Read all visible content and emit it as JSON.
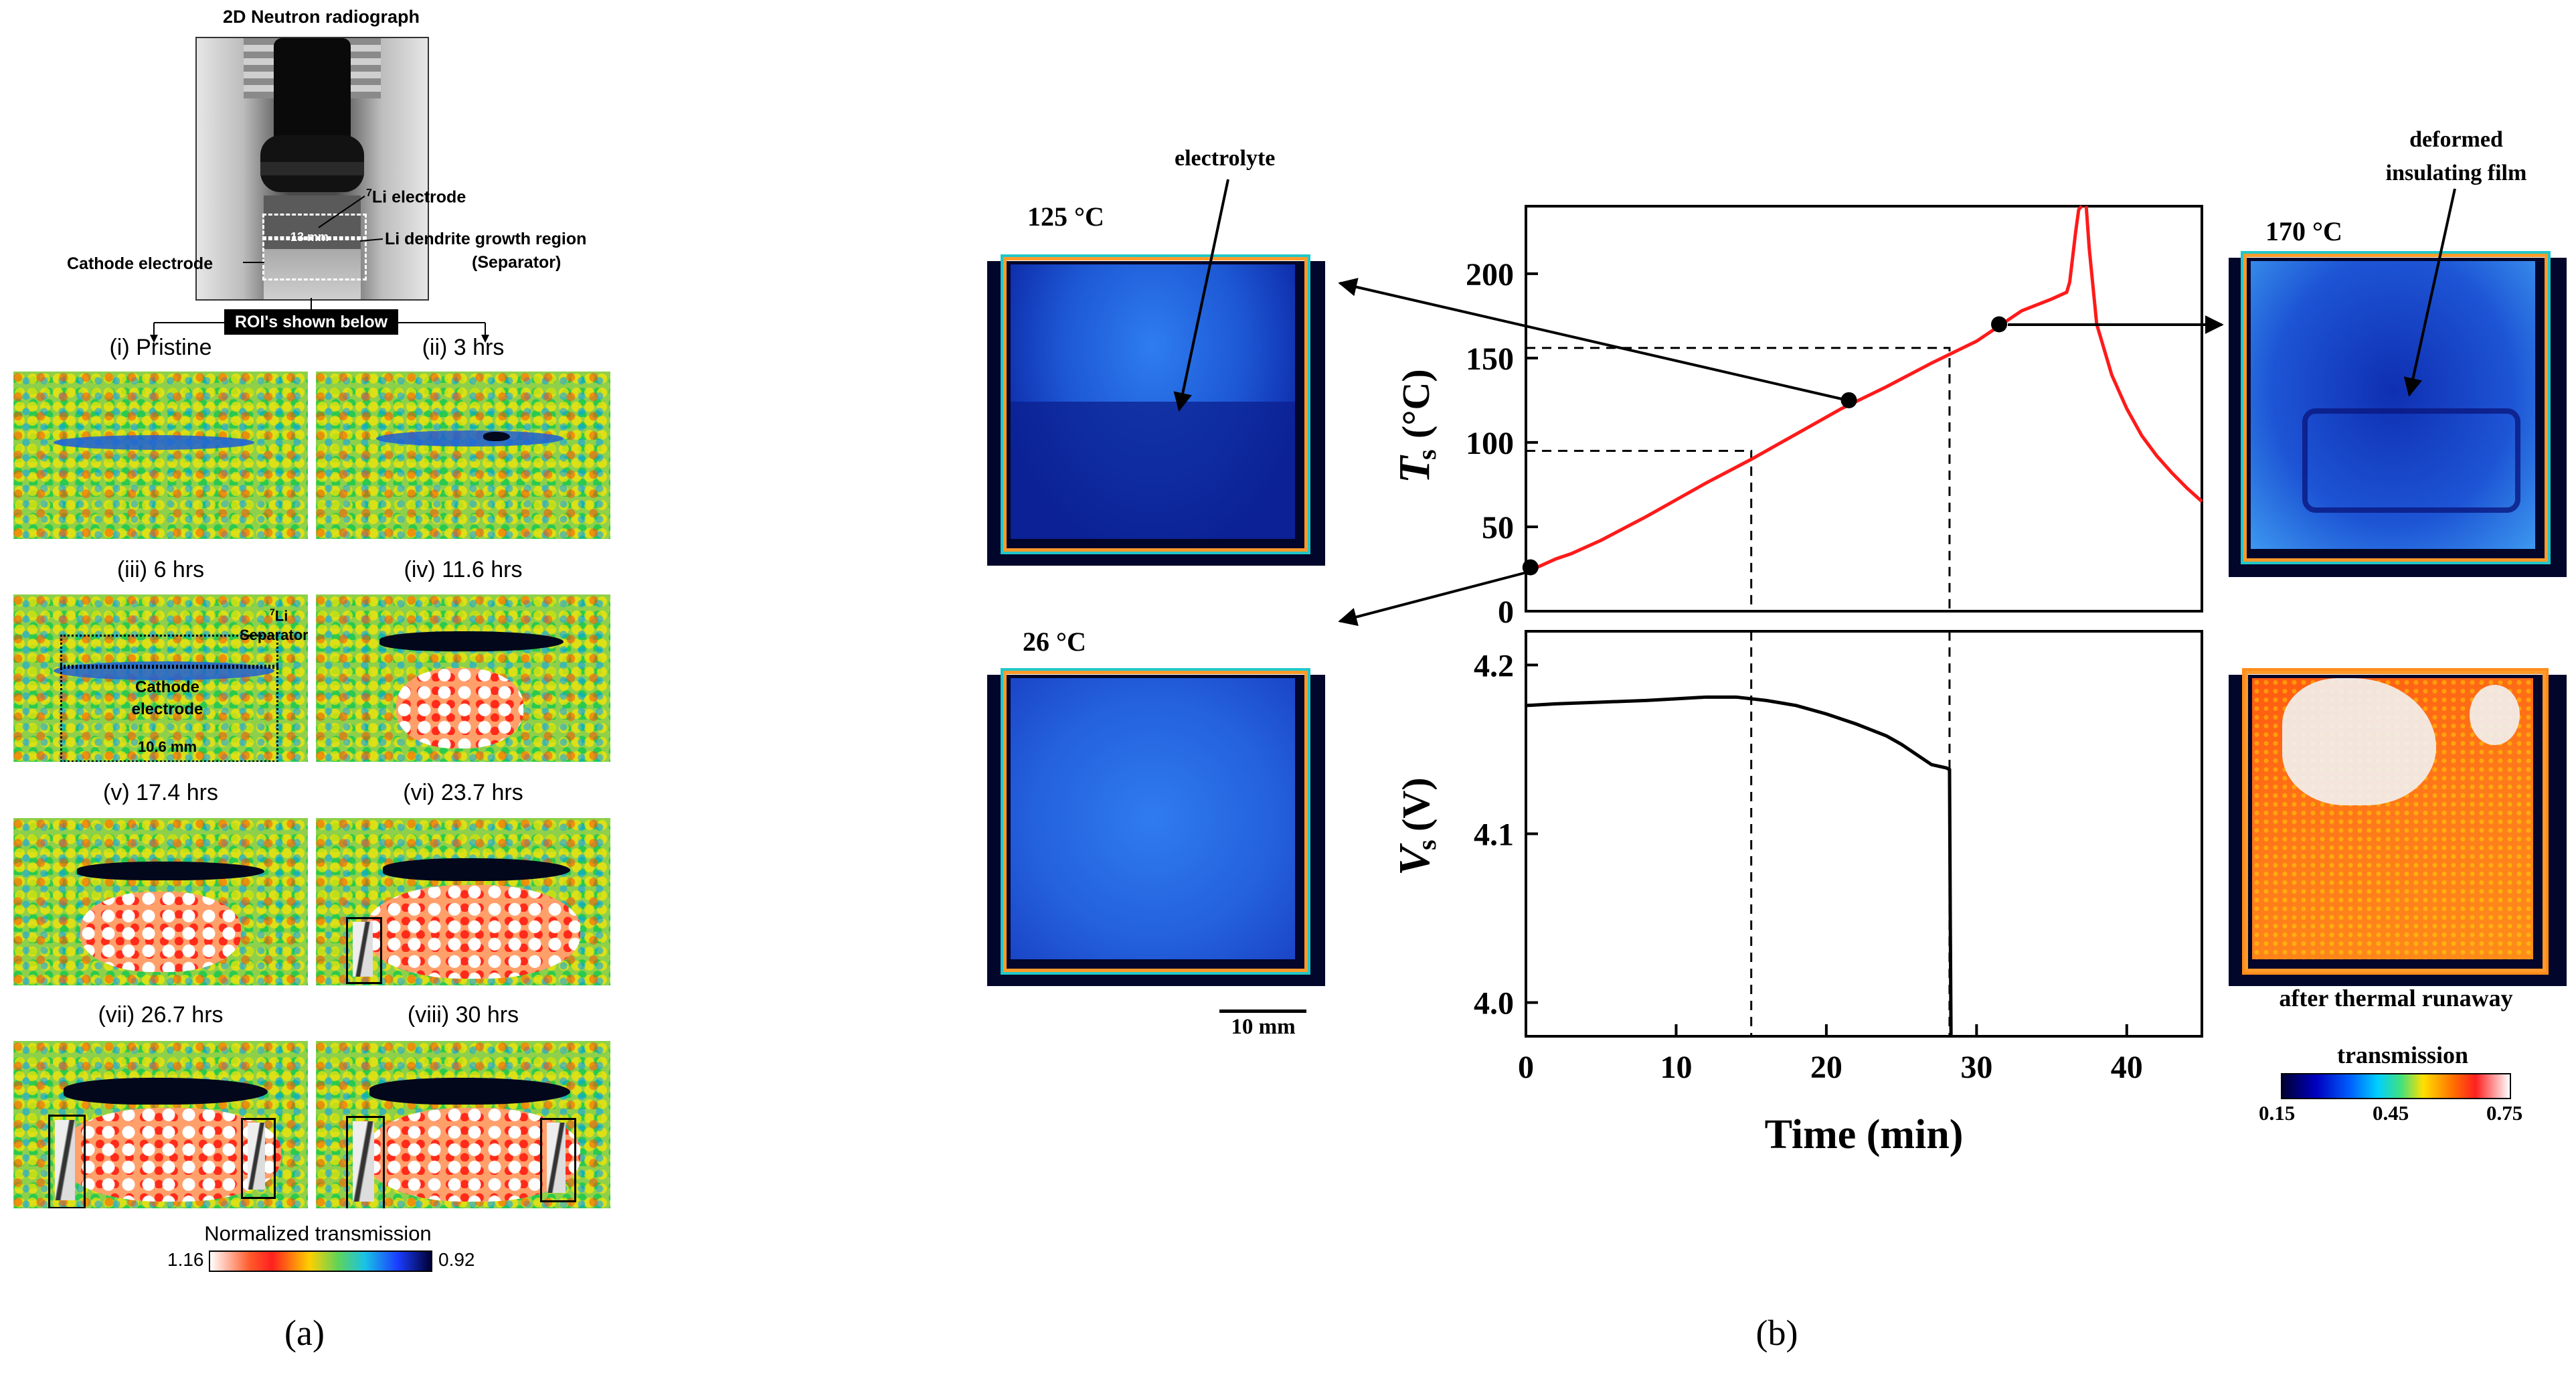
{
  "panel_a": {
    "radiograph_title": "2D Neutron radiograph",
    "li_electrode_sup": "7",
    "li_electrode": "Li electrode",
    "dendrite_region": "Li dendrite growth region",
    "separator_paren": "(Separator)",
    "cathode_electrode": "Cathode electrode",
    "width_13": "13 mm",
    "roi_banner": "ROI's shown below",
    "roi_labels": [
      "(i) Pristine",
      "(ii) 3 hrs",
      "(iii) 6 hrs",
      "(iv) 11.6 hrs",
      "(v) 17.4 hrs",
      "(vi) 23.7 hrs",
      "(vii) 26.7 hrs",
      "(viii) 30 hrs"
    ],
    "iii_li_sup": "7",
    "iii_li": "Li",
    "iii_separator": "Separator",
    "iii_cathode": "Cathode",
    "iii_electrode": "electrode",
    "iii_width": "10.6 mm",
    "colorbar_title": "Normalized transmission",
    "colorbar_left": "1.16",
    "colorbar_right": "0.92",
    "caption": "(a)"
  },
  "panel_b": {
    "img_125_label": "125 °C",
    "img_125_annotation": "electrolyte",
    "img_26_label": "26 °C",
    "scale_bar": "10 mm",
    "img_170_label": "170 °C",
    "img_170_annotation_1": "deformed",
    "img_170_annotation_2": "insulating film",
    "after_runaway": "after thermal runaway",
    "colorbar_title": "transmission",
    "colorbar_ticks": [
      "0.15",
      "0.45",
      "0.75"
    ],
    "caption": "(b)"
  },
  "chart_data": [
    {
      "type": "line",
      "ylabel": "Ts (°C)",
      "ylabel_main": "T",
      "ylabel_sub": "s",
      "ylabel_unit": "(°C)",
      "ylim": [
        0,
        240
      ],
      "yticks": [
        0,
        50,
        100,
        150,
        200
      ],
      "xlim": [
        0,
        45
      ],
      "series": [
        {
          "name": "Ts",
          "color": "#ff1a1a",
          "x": [
            0,
            0.5,
            1,
            2,
            3,
            5,
            8,
            10,
            12,
            15,
            18,
            21,
            24,
            27,
            30,
            33,
            35,
            36,
            36.2,
            36.4,
            36.6,
            36.8,
            37
          ],
          "y": [
            23,
            25,
            27,
            31,
            34,
            42,
            56,
            66,
            76,
            90,
            105,
            120,
            133,
            147,
            160,
            178,
            185,
            189,
            195,
            210,
            225,
            238,
            240
          ]
        },
        {
          "name": "Ts decay",
          "color": "#ff1a1a",
          "x": [
            37.3,
            37.5,
            38,
            39,
            40,
            41,
            42,
            43,
            44,
            45
          ],
          "y": [
            240,
            215,
            170,
            140,
            120,
            104,
            92,
            82,
            73,
            65
          ]
        }
      ],
      "markers": [
        {
          "x": 0.3,
          "y": 26,
          "label": "26 °C"
        },
        {
          "x": 21.5,
          "y": 125,
          "label": "125 °C"
        },
        {
          "x": 31.5,
          "y": 170,
          "label": "170 °C"
        }
      ],
      "guides": [
        {
          "x": 15,
          "y": 95
        },
        {
          "x": 28.2,
          "y": 156
        }
      ]
    },
    {
      "type": "line",
      "xlabel": "Time (min)",
      "ylabel": "Vs (V)",
      "ylabel_main": "V",
      "ylabel_sub": "s",
      "ylabel_unit": "(V)",
      "ylim": [
        3.98,
        4.22
      ],
      "yticks": [
        4.0,
        4.1,
        4.2
      ],
      "xlim": [
        0,
        45
      ],
      "xticks": [
        0,
        10,
        20,
        30,
        40
      ],
      "series": [
        {
          "name": "Vs",
          "color": "#000000",
          "x": [
            0,
            2,
            5,
            8,
            10,
            12,
            14,
            16,
            18,
            20,
            22,
            24,
            25,
            26,
            27,
            28,
            28.2,
            28.25,
            28.3
          ],
          "y": [
            4.176,
            4.177,
            4.178,
            4.179,
            4.18,
            4.181,
            4.181,
            4.179,
            4.176,
            4.171,
            4.165,
            4.158,
            4.153,
            4.147,
            4.141,
            4.139,
            4.138,
            4.05,
            3.98
          ]
        }
      ]
    }
  ]
}
